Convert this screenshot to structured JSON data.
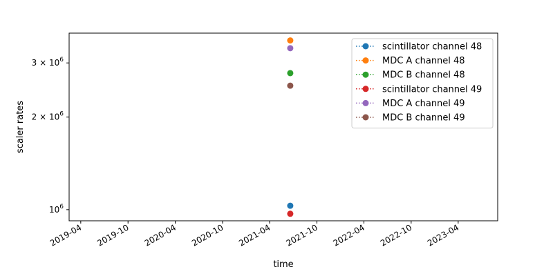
{
  "chart_data": {
    "type": "scatter",
    "title": "",
    "xlabel": "time",
    "ylabel": "scaler rates",
    "y_scale": "log",
    "xlim": [
      "2019-02-15",
      "2023-09-01"
    ],
    "ylim": [
      920000,
      3750000
    ],
    "grid": false,
    "legend_position": "upper right",
    "x_ticks": [
      "2019-04",
      "2019-10",
      "2020-04",
      "2020-10",
      "2021-04",
      "2021-10",
      "2022-04",
      "2022-10",
      "2023-04"
    ],
    "y_ticks": [
      {
        "value": 1000000,
        "base": "10",
        "exp": "6",
        "mult": ""
      },
      {
        "value": 2000000,
        "base": "10",
        "exp": "6",
        "mult": "2 × "
      },
      {
        "value": 3000000,
        "base": "10",
        "exp": "6",
        "mult": "3 × "
      }
    ],
    "series": [
      {
        "name": "scintillator channel 48",
        "color": "#1f77b4",
        "points": [
          {
            "x": "2021-06-20",
            "y": 1030000
          }
        ]
      },
      {
        "name": "MDC A channel 48",
        "color": "#ff7f0e",
        "points": [
          {
            "x": "2021-06-20",
            "y": 3550000
          }
        ]
      },
      {
        "name": "MDC B channel 48",
        "color": "#2ca02c",
        "points": [
          {
            "x": "2021-06-20",
            "y": 2780000
          }
        ]
      },
      {
        "name": "scintillator channel 49",
        "color": "#d62728",
        "points": [
          {
            "x": "2021-06-20",
            "y": 970000
          }
        ]
      },
      {
        "name": "MDC A channel 49",
        "color": "#9467bd",
        "points": [
          {
            "x": "2021-06-20",
            "y": 3350000
          }
        ]
      },
      {
        "name": "MDC B channel 49",
        "color": "#8c564b",
        "points": [
          {
            "x": "2021-06-20",
            "y": 2530000
          }
        ]
      }
    ]
  }
}
